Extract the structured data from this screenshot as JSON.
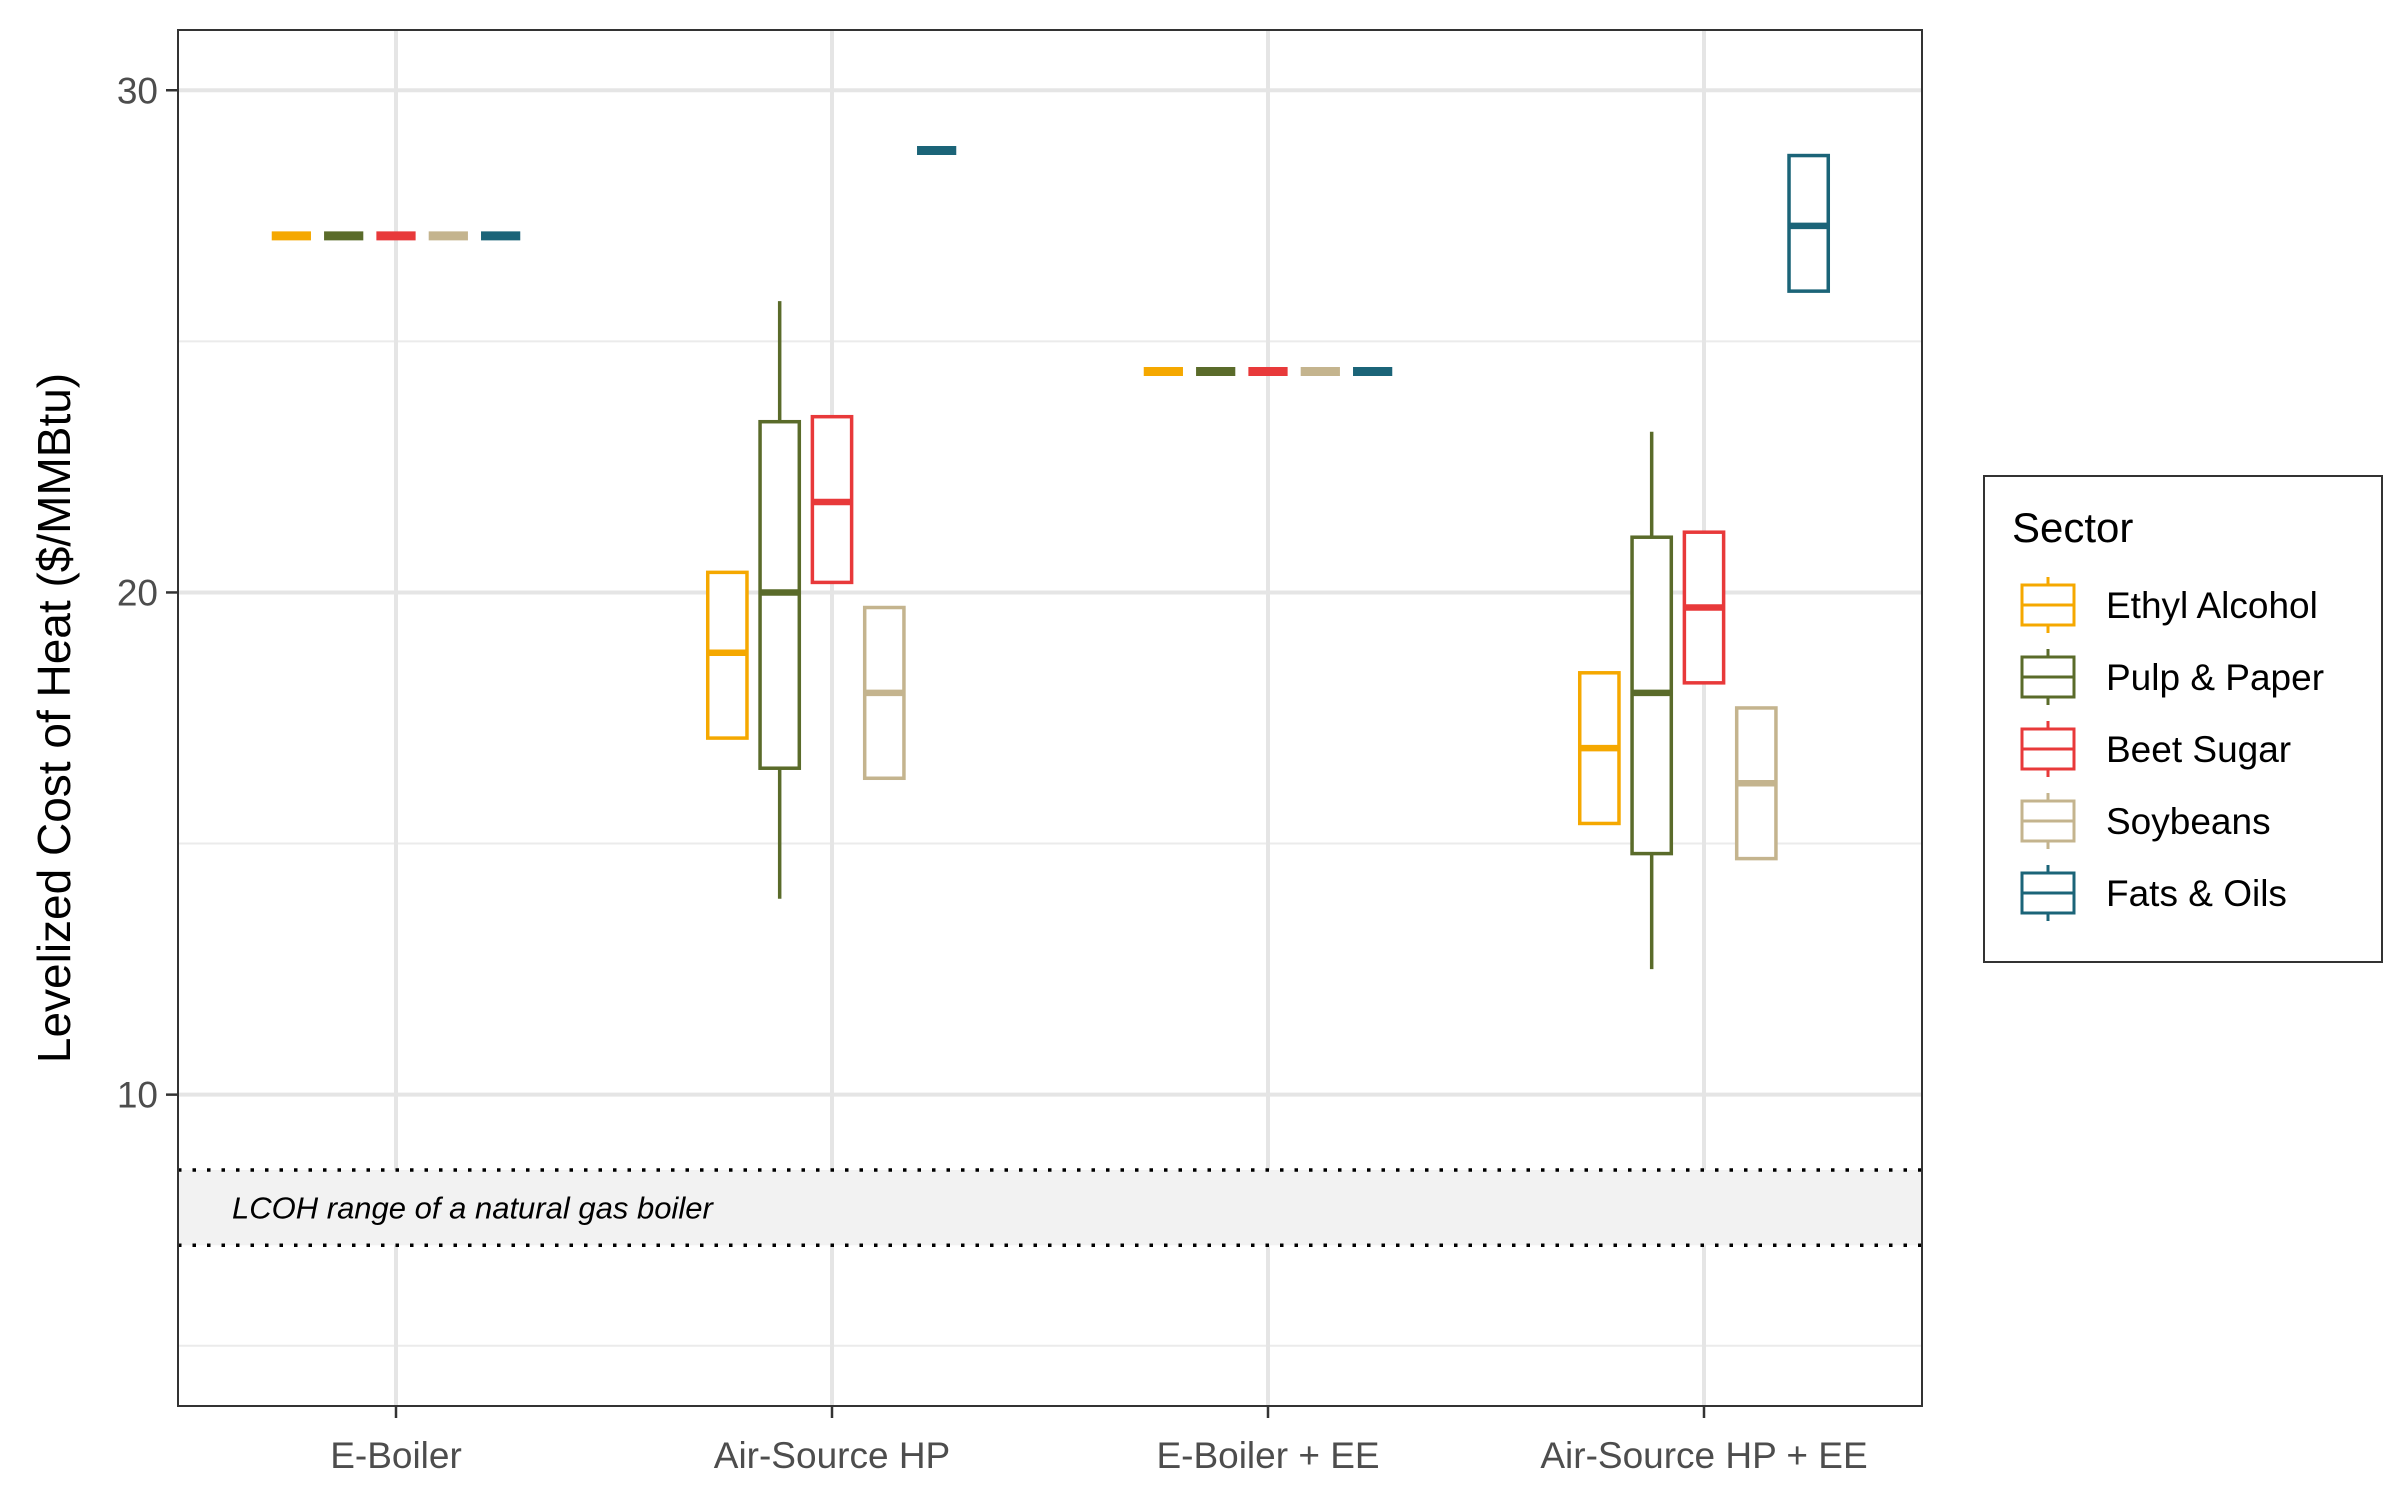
{
  "chart_data": {
    "type": "box",
    "title": "",
    "xlabel": "",
    "ylabel": "Levelized Cost of Heat ($/MMBtu)",
    "ylim": [
      3.8,
      31.2
    ],
    "yticks": [
      10,
      20,
      30
    ],
    "grid": true,
    "categories": [
      "E-Boiler",
      "Air-Source HP",
      "E-Boiler + EE",
      "Air-Source HP + EE"
    ],
    "legend": {
      "title": "Sector",
      "position": "right"
    },
    "series": [
      {
        "name": "Ethyl Alcohol",
        "color": "#F5A800",
        "boxes": [
          {
            "min": 27.1,
            "q1": 27.1,
            "median": 27.1,
            "q3": 27.1,
            "max": 27.1
          },
          {
            "min": 17.1,
            "q1": 17.1,
            "median": 18.8,
            "q3": 20.4,
            "max": 20.4
          },
          {
            "min": 24.4,
            "q1": 24.4,
            "median": 24.4,
            "q3": 24.4,
            "max": 24.4
          },
          {
            "min": 15.4,
            "q1": 15.4,
            "median": 16.9,
            "q3": 18.4,
            "max": 18.4
          }
        ]
      },
      {
        "name": "Pulp & Paper",
        "color": "#5A6B2A",
        "boxes": [
          {
            "min": 27.1,
            "q1": 27.1,
            "median": 27.1,
            "q3": 27.1,
            "max": 27.1
          },
          {
            "min": 13.9,
            "q1": 16.5,
            "median": 20.0,
            "q3": 23.4,
            "max": 25.8
          },
          {
            "min": 24.4,
            "q1": 24.4,
            "median": 24.4,
            "q3": 24.4,
            "max": 24.4
          },
          {
            "min": 12.5,
            "q1": 14.8,
            "median": 18.0,
            "q3": 21.1,
            "max": 23.2
          }
        ]
      },
      {
        "name": "Beet Sugar",
        "color": "#E8393A",
        "boxes": [
          {
            "min": 27.1,
            "q1": 27.1,
            "median": 27.1,
            "q3": 27.1,
            "max": 27.1
          },
          {
            "min": 20.2,
            "q1": 20.2,
            "median": 21.8,
            "q3": 23.5,
            "max": 23.5
          },
          {
            "min": 24.4,
            "q1": 24.4,
            "median": 24.4,
            "q3": 24.4,
            "max": 24.4
          },
          {
            "min": 18.2,
            "q1": 18.2,
            "median": 19.7,
            "q3": 21.2,
            "max": 21.2
          }
        ]
      },
      {
        "name": "Soybeans",
        "color": "#C4B48E",
        "boxes": [
          {
            "min": 27.1,
            "q1": 27.1,
            "median": 27.1,
            "q3": 27.1,
            "max": 27.1
          },
          {
            "min": 16.3,
            "q1": 16.3,
            "median": 18.0,
            "q3": 19.7,
            "max": 19.7
          },
          {
            "min": 24.4,
            "q1": 24.4,
            "median": 24.4,
            "q3": 24.4,
            "max": 24.4
          },
          {
            "min": 14.7,
            "q1": 14.7,
            "median": 16.2,
            "q3": 17.7,
            "max": 17.7
          }
        ]
      },
      {
        "name": "Fats & Oils",
        "color": "#1B6478",
        "boxes": [
          {
            "min": 27.1,
            "q1": 27.1,
            "median": 27.1,
            "q3": 27.1,
            "max": 27.1
          },
          {
            "min": 28.8,
            "q1": 28.8,
            "median": 28.8,
            "q3": 28.8,
            "max": 28.8
          },
          {
            "min": 24.4,
            "q1": 24.4,
            "median": 24.4,
            "q3": 24.4,
            "max": 24.4
          },
          {
            "min": 26.0,
            "q1": 26.0,
            "median": 27.3,
            "q3": 28.7,
            "max": 28.7
          }
        ]
      }
    ],
    "reference_band": {
      "label": "LCOH range of a natural gas boiler",
      "ymin": 7.0,
      "ymax": 8.5
    }
  }
}
